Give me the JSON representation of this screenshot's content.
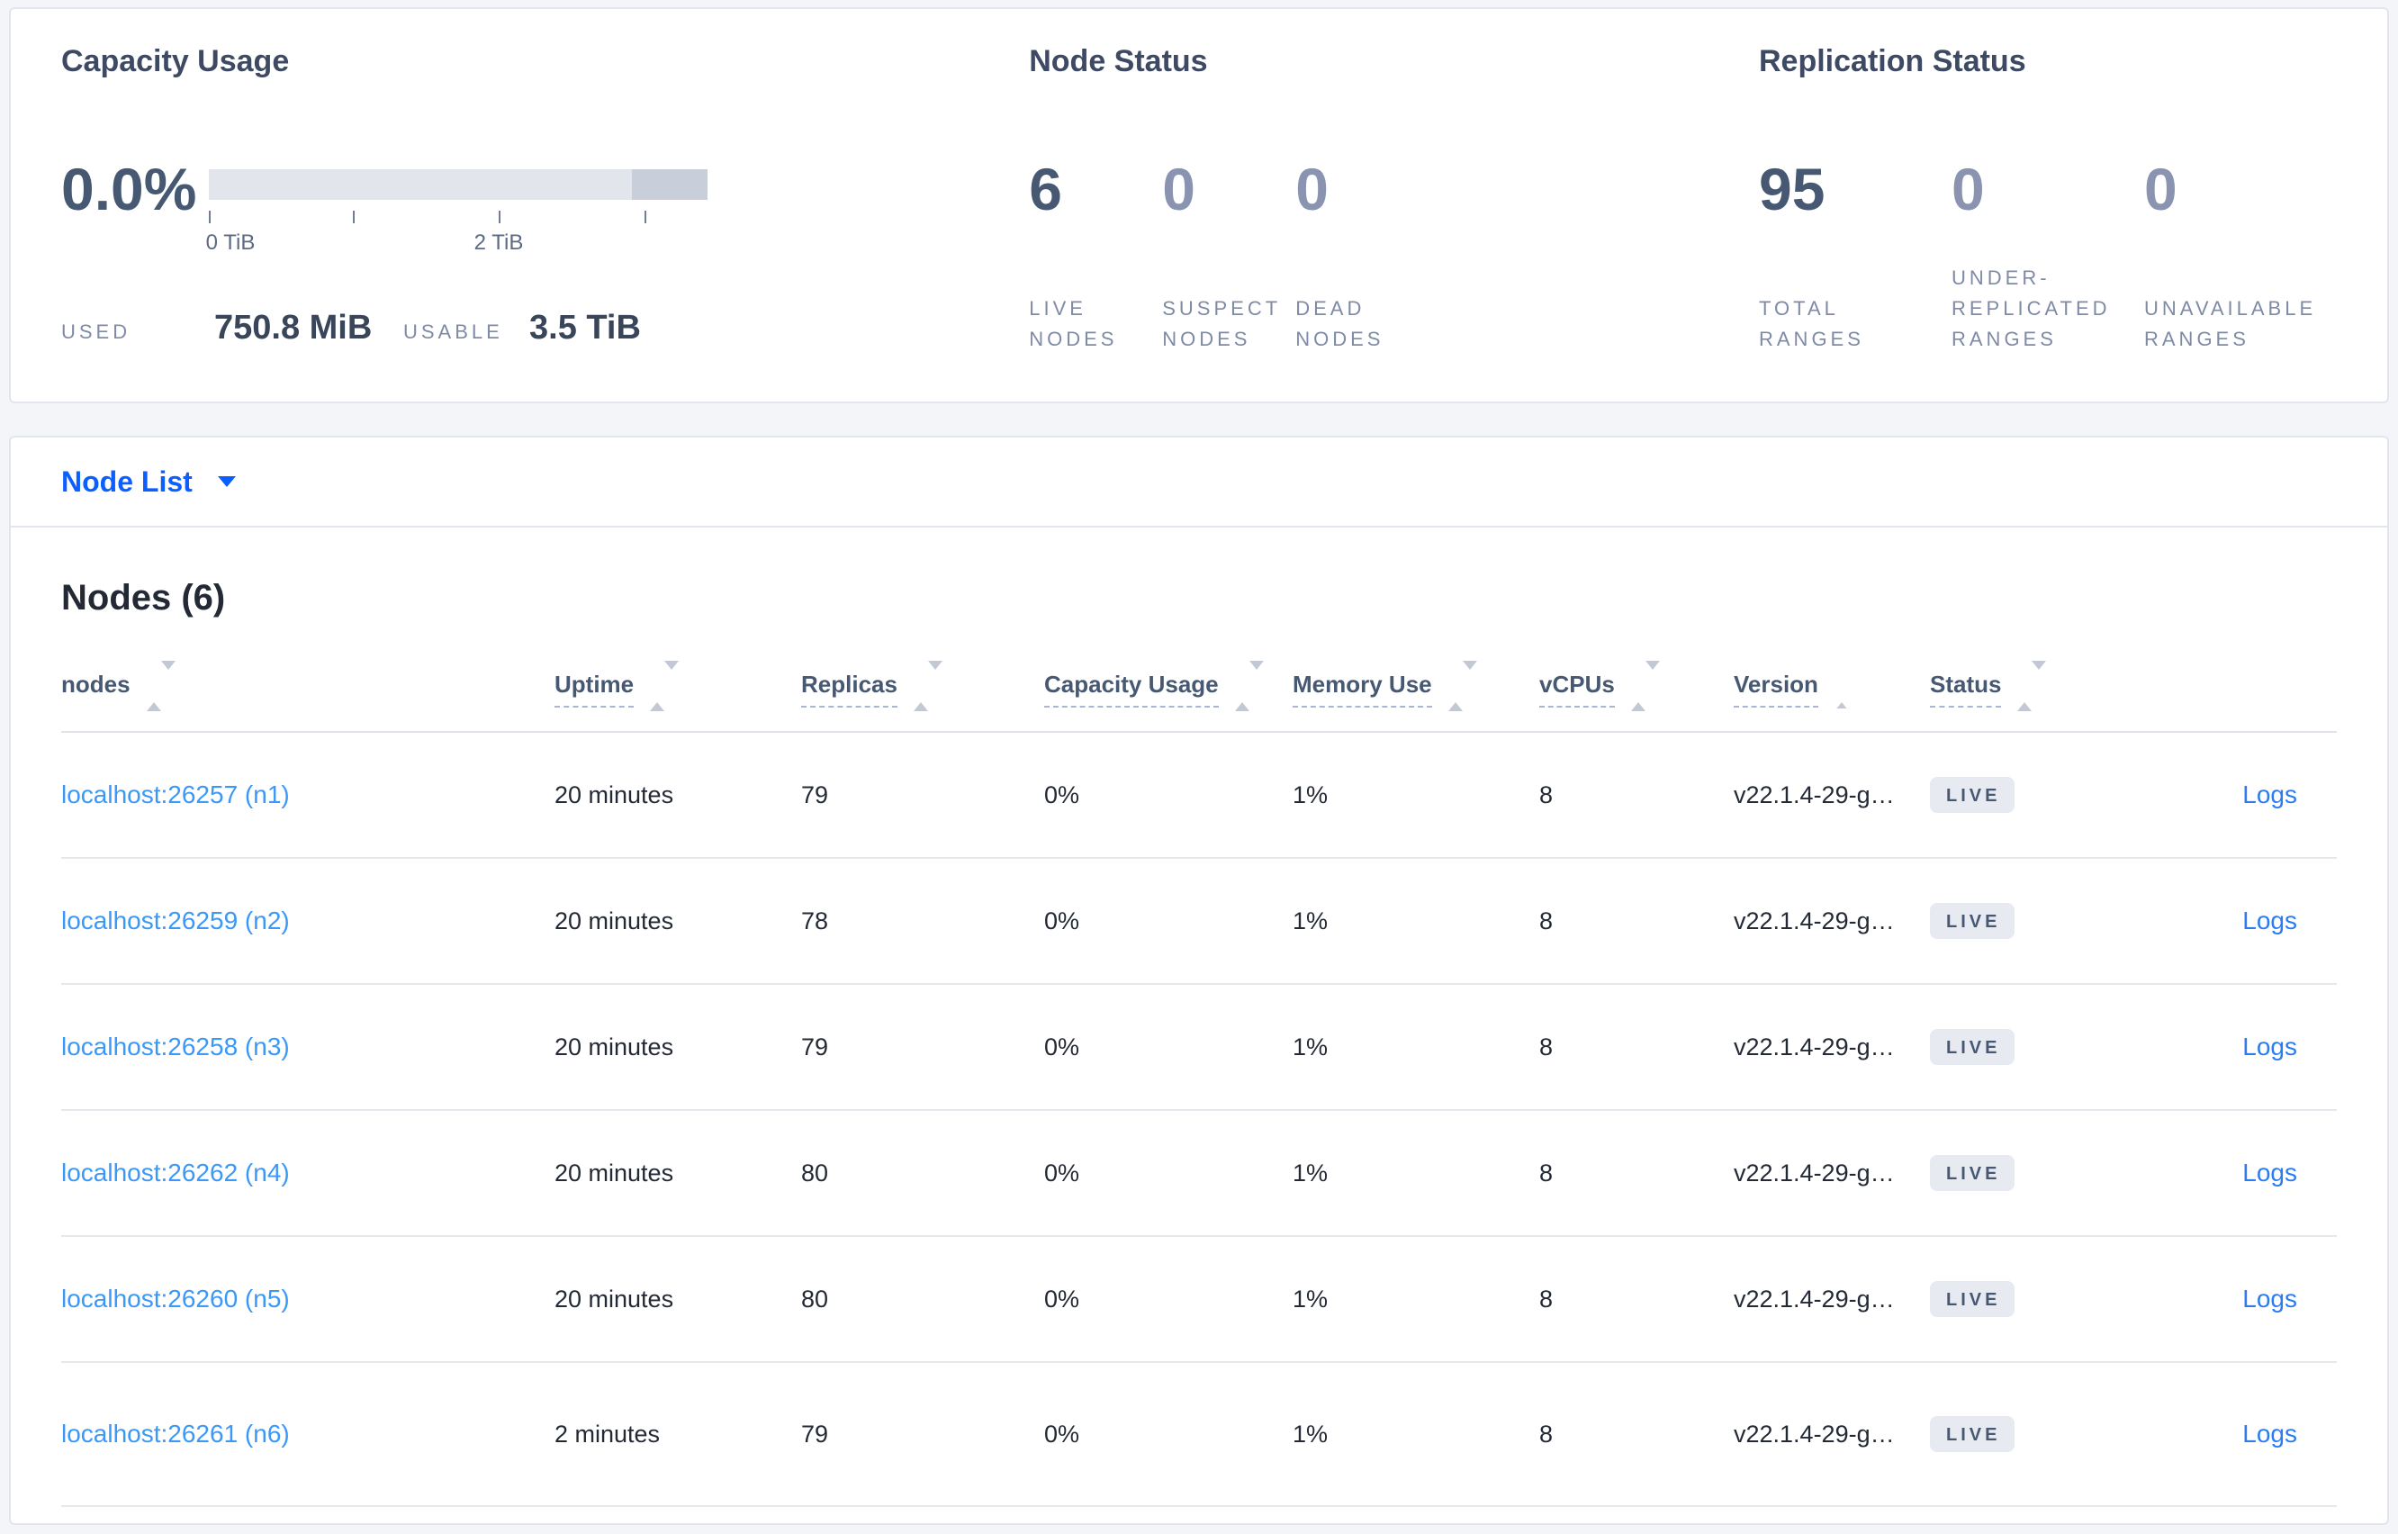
{
  "summary": {
    "capacity": {
      "title": "Capacity Usage",
      "percent": "0.0%",
      "tick_labels": [
        "0 TiB",
        "2 TiB"
      ],
      "used_label": "USED",
      "used_value": "750.8 MiB",
      "usable_label": "USABLE",
      "usable_value": "3.5 TiB"
    },
    "node_status": {
      "title": "Node Status",
      "metrics": [
        {
          "value": "6",
          "label": "LIVE NODES",
          "emphasis": true
        },
        {
          "value": "0",
          "label": "SUSPECT NODES",
          "emphasis": false
        },
        {
          "value": "0",
          "label": "DEAD NODES",
          "emphasis": false
        }
      ]
    },
    "replication": {
      "title": "Replication Status",
      "metrics": [
        {
          "value": "95",
          "label": "TOTAL RANGES",
          "emphasis": true
        },
        {
          "value": "0",
          "label": "UNDER-REPLICATED RANGES",
          "emphasis": false
        },
        {
          "value": "0",
          "label": "UNAVAILABLE RANGES",
          "emphasis": false
        }
      ]
    }
  },
  "view_selector": {
    "label": "Node List"
  },
  "nodes": {
    "title": "Nodes (6)",
    "columns": [
      "nodes",
      "Uptime",
      "Replicas",
      "Capacity Usage",
      "Memory Use",
      "vCPUs",
      "Version",
      "Status"
    ],
    "logs_label": "Logs",
    "rows": [
      {
        "node": "localhost:26257 (n1)",
        "uptime": "20 minutes",
        "replicas": "79",
        "capacity_usage": "0%",
        "memory_use": "1%",
        "vcpus": "8",
        "version": "v22.1.4-29-g…",
        "status": "LIVE"
      },
      {
        "node": "localhost:26259 (n2)",
        "uptime": "20 minutes",
        "replicas": "78",
        "capacity_usage": "0%",
        "memory_use": "1%",
        "vcpus": "8",
        "version": "v22.1.4-29-g…",
        "status": "LIVE"
      },
      {
        "node": "localhost:26258 (n3)",
        "uptime": "20 minutes",
        "replicas": "79",
        "capacity_usage": "0%",
        "memory_use": "1%",
        "vcpus": "8",
        "version": "v22.1.4-29-g…",
        "status": "LIVE"
      },
      {
        "node": "localhost:26262 (n4)",
        "uptime": "20 minutes",
        "replicas": "80",
        "capacity_usage": "0%",
        "memory_use": "1%",
        "vcpus": "8",
        "version": "v22.1.4-29-g…",
        "status": "LIVE"
      },
      {
        "node": "localhost:26260 (n5)",
        "uptime": "20 minutes",
        "replicas": "80",
        "capacity_usage": "0%",
        "memory_use": "1%",
        "vcpus": "8",
        "version": "v22.1.4-29-g…",
        "status": "LIVE"
      },
      {
        "node": "localhost:26261 (n6)",
        "uptime": "2 minutes",
        "replicas": "79",
        "capacity_usage": "0%",
        "memory_use": "1%",
        "vcpus": "8",
        "version": "v22.1.4-29-g…",
        "status": "LIVE"
      }
    ]
  },
  "colors": {
    "accent_blue": "#0b5fff",
    "node_link_blue": "#3b98f6",
    "logs_link_blue": "#2c7cf0",
    "bar_track": "#e3e5ed",
    "bar_segment": "#c9cedb",
    "badge_bg": "#e7eaf1",
    "dark_slate": "#475872",
    "muted_value": "#8a94b1",
    "page_bg": "#f4f5f9"
  }
}
